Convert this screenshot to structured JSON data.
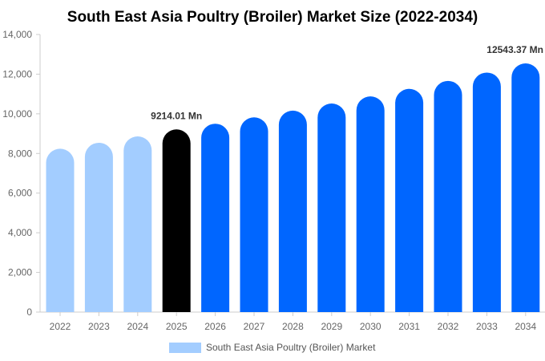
{
  "chart_data": {
    "type": "bar",
    "title": "South East Asia Poultry (Broiler) Market Size (2022-2034)",
    "categories": [
      "2022",
      "2023",
      "2024",
      "2025",
      "2026",
      "2027",
      "2028",
      "2029",
      "2030",
      "2031",
      "2032",
      "2033",
      "2034"
    ],
    "series": [
      {
        "name": "South East Asia Poultry (Broiler) Market",
        "values": [
          8240,
          8540,
          8860,
          9214.01,
          9500,
          9820,
          10160,
          10520,
          10880,
          11260,
          11660,
          12080,
          12543.37
        ]
      }
    ],
    "bar_colors": [
      "#a3cdff",
      "#a3cdff",
      "#a3cdff",
      "#000000",
      "#0066ff",
      "#0066ff",
      "#0066ff",
      "#0066ff",
      "#0066ff",
      "#0066ff",
      "#0066ff",
      "#0066ff",
      "#0066ff"
    ],
    "legend_color": "#a3cdff",
    "data_labels": [
      {
        "index": 3,
        "text": "9214.01 Mn"
      },
      {
        "index": 12,
        "text": "12543.37 Mn"
      }
    ],
    "yticks": [
      "0",
      "2,000",
      "4,000",
      "6,000",
      "8,000",
      "10,000",
      "12,000",
      "14,000"
    ],
    "ylim": [
      0,
      14000
    ],
    "legend_position": "bottom",
    "grid": false
  }
}
